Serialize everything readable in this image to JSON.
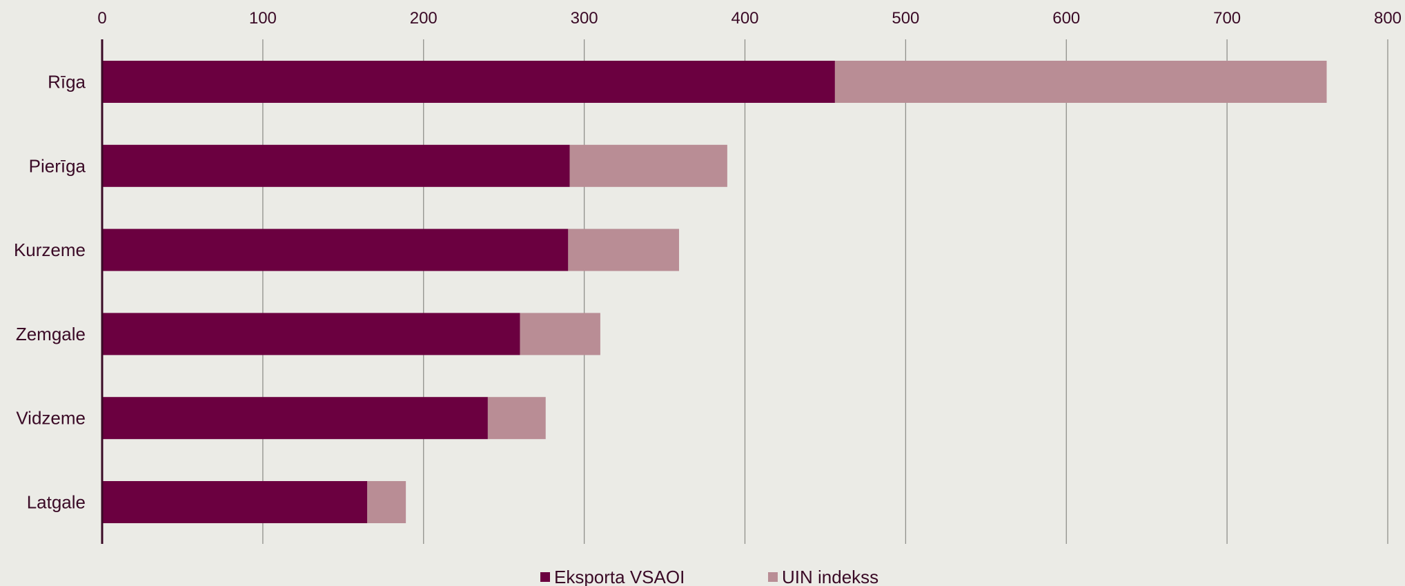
{
  "chart_data": {
    "type": "bar",
    "orientation": "horizontal",
    "stacked": true,
    "title": "",
    "xlabel": "",
    "ylabel": "",
    "categories": [
      "Rīga",
      "Pierīga",
      "Kurzeme",
      "Zemgale",
      "Vidzeme",
      "Latgale"
    ],
    "series": [
      {
        "name": "Eksporta VSAOI",
        "color": "#6b0040",
        "values": [
          456,
          291,
          290,
          260,
          240,
          165
        ]
      },
      {
        "name": "UIN indekss",
        "color": "#b98d95",
        "values": [
          306,
          98,
          69,
          50,
          36,
          24
        ]
      }
    ],
    "xlim": [
      0,
      800
    ],
    "xticks": [
      "0",
      "100",
      "200",
      "300",
      "400",
      "500",
      "600",
      "700",
      "800"
    ],
    "grid": true,
    "x_axis_position": "top",
    "legend_position": "bottom-center"
  }
}
